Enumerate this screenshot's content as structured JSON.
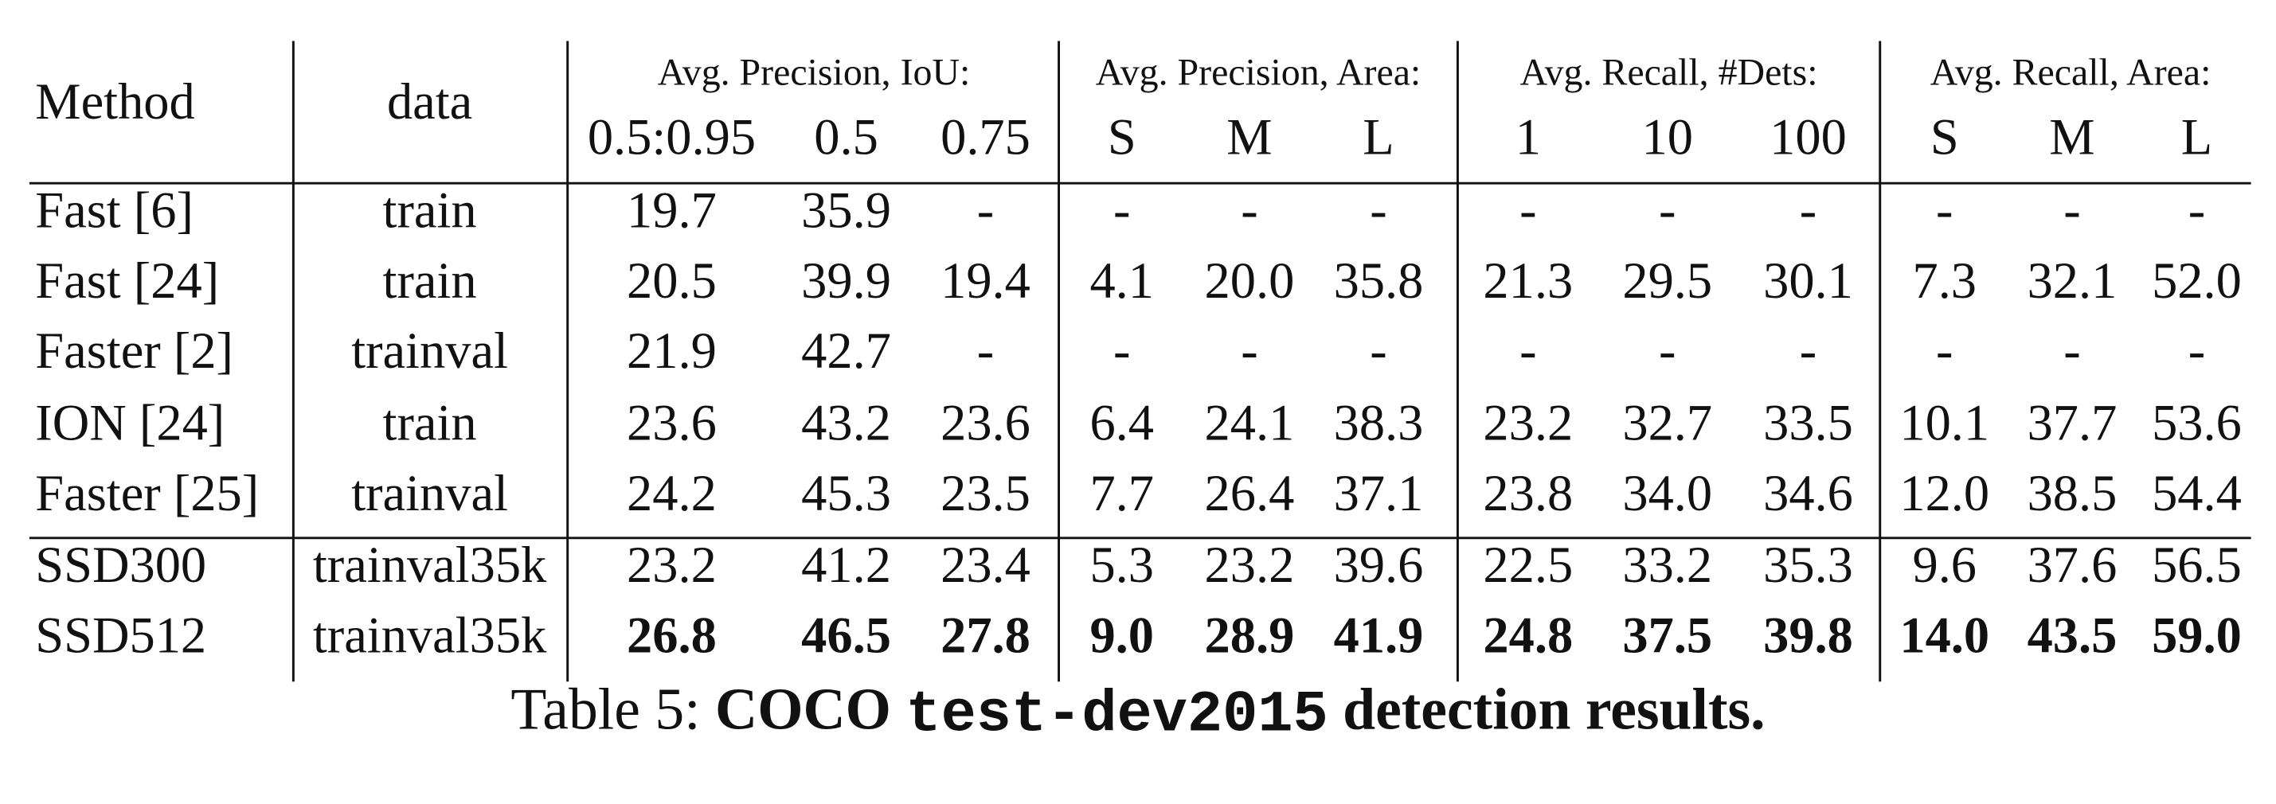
{
  "table": {
    "columns": [
      "Method",
      "data"
    ],
    "groups": [
      {
        "label": "Avg. Precision, IoU:",
        "subcolumns": [
          "0.5:0.95",
          "0.5",
          "0.75"
        ]
      },
      {
        "label": "Avg. Precision, Area:",
        "subcolumns": [
          "S",
          "M",
          "L"
        ]
      },
      {
        "label": "Avg. Recall, #Dets:",
        "subcolumns": [
          "1",
          "10",
          "100"
        ]
      },
      {
        "label": "Avg. Recall, Area:",
        "subcolumns": [
          "S",
          "M",
          "L"
        ]
      }
    ],
    "rows": [
      {
        "method": "Fast [6]",
        "data": "train",
        "values": [
          "19.7",
          "35.9",
          "-",
          "-",
          "-",
          "-",
          "-",
          "-",
          "-",
          "-",
          "-",
          "-"
        ]
      },
      {
        "method": "Fast [24]",
        "data": "train",
        "values": [
          "20.5",
          "39.9",
          "19.4",
          "4.1",
          "20.0",
          "35.8",
          "21.3",
          "29.5",
          "30.1",
          "7.3",
          "32.1",
          "52.0"
        ]
      },
      {
        "method": "Faster [2]",
        "data": "trainval",
        "values": [
          "21.9",
          "42.7",
          "-",
          "-",
          "-",
          "-",
          "-",
          "-",
          "-",
          "-",
          "-",
          "-"
        ]
      },
      {
        "method": "ION [24]",
        "data": "train",
        "values": [
          "23.6",
          "43.2",
          "23.6",
          "6.4",
          "24.1",
          "38.3",
          "23.2",
          "32.7",
          "33.5",
          "10.1",
          "37.7",
          "53.6"
        ]
      },
      {
        "method": "Faster [25]",
        "data": "trainval",
        "values": [
          "24.2",
          "45.3",
          "23.5",
          "7.7",
          "26.4",
          "37.1",
          "23.8",
          "34.0",
          "34.6",
          "12.0",
          "38.5",
          "54.4"
        ]
      },
      {
        "method": "SSD300",
        "data": "trainval35k",
        "values": [
          "23.2",
          "41.2",
          "23.4",
          "5.3",
          "23.2",
          "39.6",
          "22.5",
          "33.2",
          "35.3",
          "9.6",
          "37.6",
          "56.5"
        ]
      },
      {
        "method": "SSD512",
        "data": "trainval35k",
        "values": [
          "26.8",
          "46.5",
          "27.8",
          "9.0",
          "28.9",
          "41.9",
          "24.8",
          "37.5",
          "39.8",
          "14.0",
          "43.5",
          "59.0"
        ],
        "bold": true
      }
    ]
  },
  "caption": {
    "label": "Table 5:",
    "title": "COCO",
    "code": "test-dev2015",
    "rest": "detection results."
  }
}
